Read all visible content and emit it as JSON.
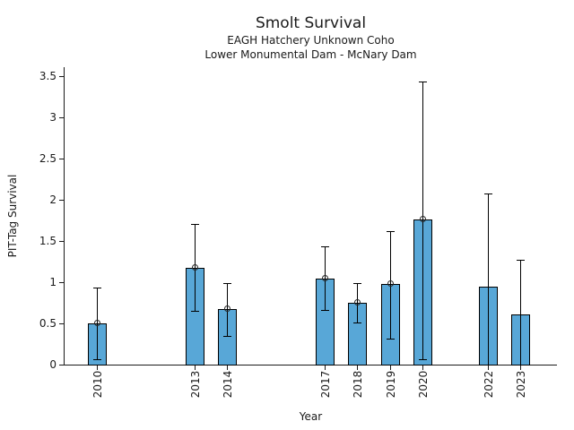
{
  "header": {
    "title": "Smolt Survival",
    "subtitle1": "EAGH Hatchery Unknown Coho",
    "subtitle2": "Lower Monumental Dam - McNary Dam"
  },
  "chart_data": {
    "type": "bar",
    "title": "Smolt Survival",
    "subtitle1": "EAGH Hatchery Unknown Coho",
    "subtitle2": "Lower Monumental Dam - McNary Dam",
    "xlabel": "Year",
    "ylabel": "PIT-Tag Survival",
    "ylim": [
      0,
      3.6
    ],
    "xlim": [
      2009,
      2024.1
    ],
    "grid": false,
    "legend": "none",
    "bar_color": "#58a7d7",
    "bar_edge_color": "#000000",
    "errorbar_color": "#000000",
    "yticks": [
      0,
      0.5,
      1,
      1.5,
      2,
      2.5,
      3,
      3.5
    ],
    "categories": [
      2010,
      2013,
      2014,
      2017,
      2018,
      2019,
      2020,
      2022,
      2023
    ],
    "values": [
      0.5,
      1.17,
      0.67,
      1.04,
      0.75,
      0.98,
      1.76,
      0.95,
      0.61
    ],
    "error_low": [
      0.07,
      0.65,
      0.35,
      0.66,
      0.51,
      0.31,
      0.07,
      0,
      0
    ],
    "error_high": [
      0.93,
      1.71,
      0.99,
      1.43,
      0.99,
      1.62,
      3.43,
      2.08,
      1.27
    ],
    "point_markers": [
      true,
      true,
      true,
      true,
      true,
      true,
      true,
      false,
      false
    ]
  }
}
